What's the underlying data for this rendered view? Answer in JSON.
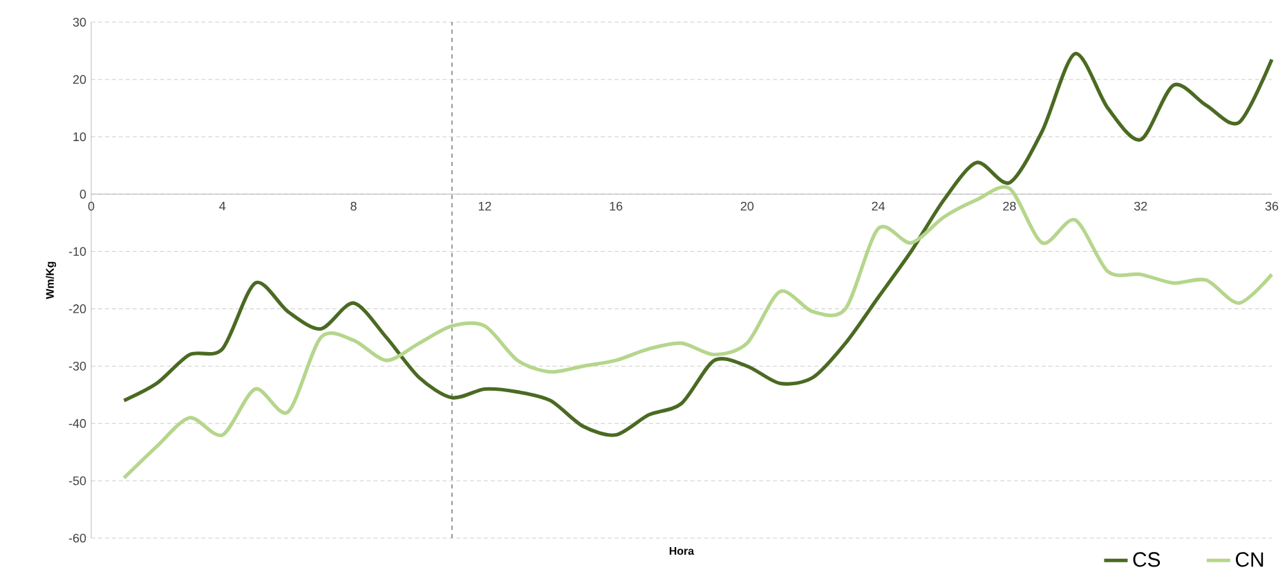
{
  "chart_data": {
    "type": "line",
    "xlabel": "Hora",
    "ylabel": "Wm/Kg",
    "x": [
      1,
      2,
      3,
      4,
      5,
      6,
      7,
      8,
      9,
      10,
      11,
      12,
      13,
      14,
      15,
      16,
      17,
      18,
      19,
      20,
      21,
      22,
      23,
      24,
      25,
      26,
      27,
      28,
      29,
      30,
      31,
      32,
      33,
      34,
      35,
      36
    ],
    "series": [
      {
        "name": "CS",
        "color": "#4a6a22",
        "values": [
          -36,
          -33,
          -28,
          -27,
          -15.5,
          -20.5,
          -23.5,
          -19,
          -25,
          -32,
          -35.5,
          -34,
          -34.5,
          -36,
          -40.5,
          -42,
          -38.5,
          -36.5,
          -29,
          -30,
          -33,
          -32,
          -26,
          -18,
          -10,
          -1,
          5.5,
          2,
          11,
          24.5,
          15,
          9.5,
          19,
          15.5,
          12.5,
          23.5
        ]
      },
      {
        "name": "CN",
        "color": "#b5d68c",
        "values": [
          -49.5,
          -44,
          -39,
          -42,
          -34,
          -38,
          -25,
          -25.5,
          -29,
          -26,
          -23,
          -23,
          -29,
          -31,
          -30,
          -29,
          -27,
          -26,
          -28,
          -26,
          -17,
          -20.5,
          -20,
          -6,
          -8.5,
          -4,
          -1,
          1,
          -8.5,
          -4.5,
          -13.5,
          -14,
          -15.5,
          -15,
          -19,
          -14
        ]
      }
    ],
    "xlim": [
      0,
      36
    ],
    "xticks": [
      0,
      4,
      8,
      12,
      16,
      20,
      24,
      28,
      32,
      36
    ],
    "ylim": [
      -60,
      30
    ],
    "yticks": [
      -60,
      -50,
      -40,
      -30,
      -20,
      -10,
      0,
      10,
      20,
      30
    ],
    "grid": "y",
    "legend": "bottom",
    "marker": "none",
    "line_style": "solid",
    "ref_lines": [
      {
        "axis": "x",
        "value": 11,
        "color": "#7f7f7f",
        "line_style": "dashed"
      }
    ]
  }
}
